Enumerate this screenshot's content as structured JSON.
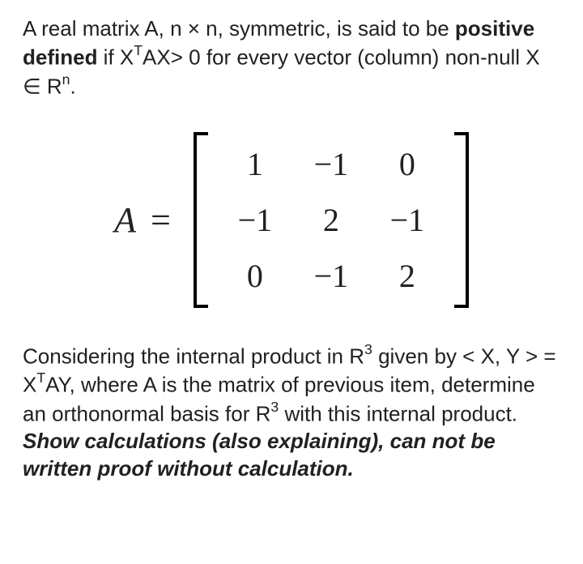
{
  "definition": {
    "part1": "A real matrix A, n × n, symmetric, is said to be ",
    "term": "positive defined",
    "part2": " if X",
    "sup1": "T",
    "part3": "AX> 0 for every vector (column) non-null X ∈ R",
    "sup2": "n",
    "part4": "."
  },
  "matrix": {
    "lhs": "A",
    "eq": "=",
    "rows": [
      [
        "1",
        "−1",
        "0"
      ],
      [
        "−1",
        "2",
        "−1"
      ],
      [
        "0",
        "−1",
        "2"
      ]
    ]
  },
  "question": {
    "p1": "Considering the internal product in R",
    "sup1": "3",
    "p2": " given by < X, Y > = X",
    "sup2": "T",
    "p3": "AY, where A is the matrix of previous item, determine an orthonormal basis for R",
    "sup3": "3",
    "p4": " with this internal product.",
    "em": "Show calculations (also explaining), can not be written proof without calculation."
  }
}
